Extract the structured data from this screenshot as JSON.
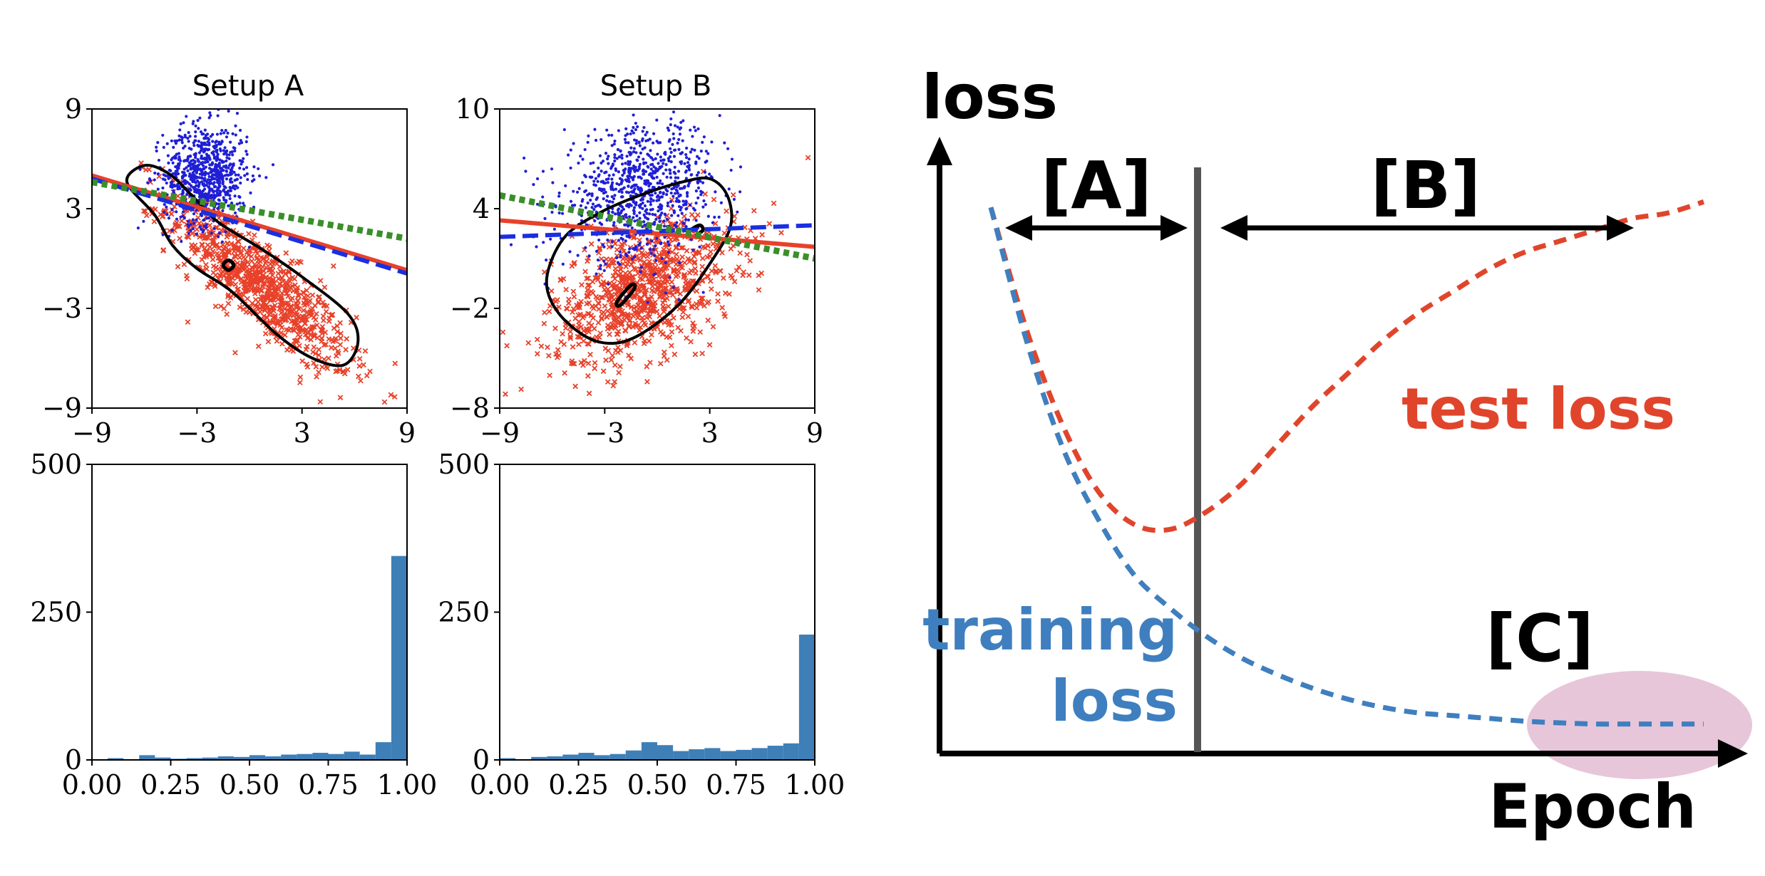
{
  "colors": {
    "blue_points": "#1f1fd6",
    "red_points": "#e8412a",
    "contour": "#000000",
    "fit_red": "#e8412a",
    "fit_blue": "#1a2fe0",
    "fit_green": "#3a8f2a",
    "histogram": "#3e7fb8",
    "test_loss": "#e0452c",
    "training_loss": "#3f7fbf",
    "region_c": "#e7c6da",
    "divider": "#555555"
  },
  "chart_data": [
    {
      "type": "scatter",
      "title": "Setup A",
      "xlim": [
        -9,
        9
      ],
      "ylim": [
        -9,
        9
      ],
      "xticks": [
        "−9",
        "−3",
        "3",
        "9"
      ],
      "yticks": [
        "−9",
        "−3",
        "3",
        "9"
      ],
      "clusters": [
        {
          "marker": "dot",
          "color": "blue",
          "center": [
            -2.5,
            5.0
          ],
          "sd": [
            1.2,
            1.5
          ],
          "count": 800,
          "corr": 0.0
        },
        {
          "marker": "x",
          "color": "red",
          "center": [
            0.5,
            -1.5
          ],
          "sd": [
            2.6,
            2.6
          ],
          "count": 900,
          "corr": -0.85
        }
      ],
      "fit_lines": [
        {
          "style": "solid",
          "color": "red",
          "x": [
            -9,
            9
          ],
          "y": [
            5.0,
            -0.7
          ]
        },
        {
          "style": "dashed",
          "color": "blue",
          "x": [
            -9,
            9
          ],
          "y": [
            4.8,
            -0.9
          ]
        },
        {
          "style": "dotted",
          "color": "green",
          "x": [
            -9,
            9
          ],
          "y": [
            4.6,
            1.2
          ]
        }
      ],
      "contours": [
        {
          "points": [
            [
              -7.0,
              4.6
            ],
            [
              -6.0,
              5.6
            ],
            [
              -4.6,
              5.1
            ],
            [
              -3.2,
              3.7
            ],
            [
              -1.8,
              2.2
            ],
            [
              0.8,
              0.5
            ],
            [
              3.0,
              -1.1
            ],
            [
              5.6,
              -3.3
            ],
            [
              6.2,
              -5.0
            ],
            [
              5.4,
              -6.4
            ],
            [
              3.6,
              -6.0
            ],
            [
              1.6,
              -4.6
            ],
            [
              -1.0,
              -2.0
            ],
            [
              -3.0,
              -0.6
            ],
            [
              -4.4,
              0.8
            ],
            [
              -5.4,
              2.6
            ]
          ]
        },
        {
          "points": [
            [
              -1.5,
              -0.4
            ],
            [
              -1.2,
              -0.1
            ],
            [
              -0.9,
              -0.4
            ],
            [
              -1.2,
              -0.7
            ]
          ]
        }
      ]
    },
    {
      "type": "scatter",
      "title": "Setup B",
      "xlim": [
        -9,
        9
      ],
      "ylim": [
        -8,
        10
      ],
      "xticks": [
        "−9",
        "−3",
        "3",
        "9"
      ],
      "yticks": [
        "−8",
        "−2",
        "4",
        "10"
      ],
      "clusters": [
        {
          "marker": "dot",
          "color": "blue",
          "center": [
            -1.0,
            5.0
          ],
          "sd": [
            2.2,
            2.0
          ],
          "count": 900,
          "corr": 0.2
        },
        {
          "marker": "x",
          "color": "red",
          "center": [
            -0.8,
            -0.8
          ],
          "sd": [
            2.6,
            2.2
          ],
          "count": 900,
          "corr": 0.45
        }
      ],
      "fit_lines": [
        {
          "style": "solid",
          "color": "red",
          "x": [
            -9,
            9
          ],
          "y": [
            3.3,
            1.7
          ]
        },
        {
          "style": "dashed",
          "color": "blue",
          "x": [
            -9,
            9
          ],
          "y": [
            2.3,
            3.0
          ]
        },
        {
          "style": "dotted",
          "color": "green",
          "x": [
            -9,
            9
          ],
          "y": [
            4.8,
            1.0
          ]
        }
      ],
      "contours": [
        {
          "points": [
            [
              -6.2,
              0.4
            ],
            [
              -5.2,
              2.4
            ],
            [
              -3.2,
              3.8
            ],
            [
              -1.0,
              4.8
            ],
            [
              1.4,
              5.6
            ],
            [
              3.0,
              5.8
            ],
            [
              4.0,
              4.8
            ],
            [
              4.2,
              3.0
            ],
            [
              3.2,
              1.0
            ],
            [
              1.2,
              -1.8
            ],
            [
              -1.4,
              -3.8
            ],
            [
              -3.4,
              -4.0
            ],
            [
              -5.2,
              -2.8
            ],
            [
              -6.2,
              -1.2
            ]
          ]
        },
        {
          "points": [
            [
              -2.3,
              -1.6
            ],
            [
              -1.5,
              -0.6
            ],
            [
              -1.3,
              -0.8
            ],
            [
              -2.1,
              -1.8
            ]
          ]
        },
        {
          "points": [
            [
              1.8,
              2.6
            ],
            [
              2.4,
              3.0
            ],
            [
              2.6,
              2.7
            ],
            [
              2.0,
              2.3
            ]
          ]
        }
      ]
    },
    {
      "type": "bar",
      "xlim": [
        0,
        1
      ],
      "ylim": [
        0,
        500
      ],
      "xticks": [
        "0.00",
        "0.25",
        "0.50",
        "0.75",
        "1.00"
      ],
      "yticks": [
        "0",
        "250",
        "500"
      ],
      "bin_width": 0.05,
      "values": [
        3,
        1,
        8,
        4,
        2,
        3,
        4,
        6,
        5,
        8,
        6,
        9,
        10,
        12,
        10,
        14,
        9,
        30,
        345
      ]
    },
    {
      "type": "bar",
      "xlim": [
        0,
        1
      ],
      "ylim": [
        0,
        500
      ],
      "xticks": [
        "0.00",
        "0.25",
        "0.50",
        "0.75",
        "1.00"
      ],
      "yticks": [
        "0",
        "250",
        "500"
      ],
      "bin_width": 0.05,
      "values": [
        3,
        1,
        5,
        6,
        9,
        12,
        8,
        10,
        16,
        30,
        25,
        15,
        18,
        20,
        15,
        17,
        20,
        24,
        28,
        212
      ]
    },
    {
      "type": "line",
      "xlabel": "Epoch",
      "ylabel": "loss",
      "grid": false,
      "series": [
        {
          "name": "test loss",
          "style": "dashed",
          "color": "red",
          "x": [
            0.0,
            0.05,
            0.1,
            0.15,
            0.2,
            0.25,
            0.3,
            0.35,
            0.4,
            0.45,
            0.5,
            0.55,
            0.6,
            0.65,
            0.7,
            0.75,
            0.8,
            0.85,
            0.9,
            0.95,
            1.0
          ],
          "y": [
            0.96,
            0.74,
            0.57,
            0.45,
            0.39,
            0.38,
            0.41,
            0.46,
            0.53,
            0.6,
            0.66,
            0.72,
            0.77,
            0.81,
            0.85,
            0.88,
            0.9,
            0.92,
            0.94,
            0.95,
            0.97
          ]
        },
        {
          "name": "training loss",
          "style": "dashed",
          "color": "blue",
          "x": [
            0.0,
            0.05,
            0.1,
            0.15,
            0.2,
            0.25,
            0.3,
            0.35,
            0.4,
            0.45,
            0.5,
            0.55,
            0.6,
            0.65,
            0.7,
            0.75,
            0.8,
            0.85,
            0.9,
            0.95,
            1.0
          ],
          "y": [
            0.96,
            0.72,
            0.53,
            0.4,
            0.3,
            0.24,
            0.19,
            0.15,
            0.12,
            0.095,
            0.075,
            0.06,
            0.05,
            0.045,
            0.04,
            0.035,
            0.032,
            0.03,
            0.03,
            0.03,
            0.03
          ]
        }
      ],
      "annotations": {
        "region_a": "[A]",
        "region_b": "[B]",
        "region_c": "[C]",
        "test_loss_label": "test loss",
        "training_loss_line1": "training",
        "training_loss_line2": "loss"
      }
    }
  ]
}
